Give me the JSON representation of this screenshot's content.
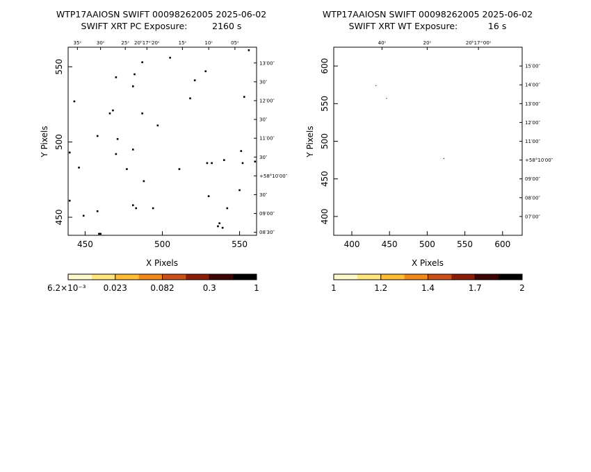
{
  "chart_data": [
    {
      "type": "scatter",
      "title": "WTP17AAIOSN SWIFT 00098262005 2025-06-02",
      "subtitle": "SWIFT XRT PC Exposure:         2160 s",
      "xlabel": "X Pixels",
      "ylabel": "Y Pixels",
      "xlim": [
        439,
        561
      ],
      "ylim": [
        438,
        563
      ],
      "xticks": [
        450,
        500,
        550
      ],
      "yticks": [
        450,
        500,
        550
      ],
      "ra_ticks": [
        {
          "x": 445,
          "label": "35ˢ"
        },
        {
          "x": 460,
          "label": "30ˢ"
        },
        {
          "x": 476,
          "label": "25ˢ"
        },
        {
          "x": 490,
          "label": "20ʰ17ᵐ20ˢ"
        },
        {
          "x": 513,
          "label": "15ˢ"
        },
        {
          "x": 530,
          "label": "10ˢ"
        },
        {
          "x": 547,
          "label": "05ˢ"
        }
      ],
      "dec_ticks": [
        {
          "y": 552.5,
          "label": "13′00″"
        },
        {
          "y": 540,
          "label": "30″"
        },
        {
          "y": 527.5,
          "label": "12′00″"
        },
        {
          "y": 515,
          "label": "30″"
        },
        {
          "y": 502.5,
          "label": "11′00″"
        },
        {
          "y": 490,
          "label": "30″"
        },
        {
          "y": 477.5,
          "label": "+58°10′00″"
        },
        {
          "y": 465,
          "label": "30″"
        },
        {
          "y": 452.5,
          "label": "09′00″"
        },
        {
          "y": 440,
          "label": "08′30″"
        }
      ],
      "points": [
        [
          470,
          543
        ],
        [
          482,
          545
        ],
        [
          481,
          537
        ],
        [
          487,
          553
        ],
        [
          505,
          556
        ],
        [
          528,
          547
        ],
        [
          521,
          541
        ],
        [
          518,
          529
        ],
        [
          443,
          527
        ],
        [
          468,
          521
        ],
        [
          466,
          519
        ],
        [
          487,
          519
        ],
        [
          497,
          511
        ],
        [
          553,
          530
        ],
        [
          458,
          504
        ],
        [
          471,
          502
        ],
        [
          470,
          492
        ],
        [
          481,
          495
        ],
        [
          440,
          493
        ],
        [
          446,
          483
        ],
        [
          477,
          482
        ],
        [
          511,
          482
        ],
        [
          529,
          486
        ],
        [
          532,
          486
        ],
        [
          540,
          488
        ],
        [
          552,
          486
        ],
        [
          551,
          494
        ],
        [
          560,
          487
        ],
        [
          488,
          474
        ],
        [
          550,
          468
        ],
        [
          530,
          464
        ],
        [
          440,
          461
        ],
        [
          481,
          458
        ],
        [
          483,
          456
        ],
        [
          494,
          456
        ],
        [
          458,
          454
        ],
        [
          449,
          451
        ],
        [
          542,
          456
        ],
        [
          537,
          446
        ],
        [
          536,
          444
        ],
        [
          539,
          443
        ],
        [
          459,
          439
        ],
        [
          460,
          439
        ],
        [
          556,
          561
        ]
      ],
      "colorbar": {
        "labels": [
          "6.2×10⁻³",
          "0.023",
          "0.082",
          "0.3",
          "1"
        ],
        "colors": [
          "#fffacd",
          "#ffe680",
          "#ffbe3a",
          "#f08a1e",
          "#c8501a",
          "#8a1e0a",
          "#3c0505",
          "#000000"
        ]
      }
    },
    {
      "type": "scatter",
      "title": "WTP17AAIOSN SWIFT 00098262005 2025-06-02",
      "subtitle": "SWIFT XRT WT Exposure:           16 s",
      "xlabel": "X Pixels",
      "ylabel": "Y Pixels",
      "xlim": [
        376,
        626
      ],
      "ylim": [
        375,
        625
      ],
      "xticks": [
        400,
        450,
        500,
        550,
        600
      ],
      "yticks": [
        400,
        450,
        500,
        550,
        600
      ],
      "ra_ticks": [
        {
          "x": 440,
          "label": "40ˢ"
        },
        {
          "x": 500,
          "label": "20ˢ"
        },
        {
          "x": 568,
          "label": "20ʰ17ᵐ00ˢ"
        }
      ],
      "dec_ticks": [
        {
          "y": 600,
          "label": "15′00″"
        },
        {
          "y": 575,
          "label": "14′00″"
        },
        {
          "y": 550,
          "label": "13′00″"
        },
        {
          "y": 525,
          "label": "12′00″"
        },
        {
          "y": 500,
          "label": "11′00″"
        },
        {
          "y": 475,
          "label": "+58°10′00″"
        },
        {
          "y": 450,
          "label": "09′00″"
        },
        {
          "y": 425,
          "label": "08′00″"
        },
        {
          "y": 400,
          "label": "07′00″"
        }
      ],
      "points": [
        [
          432,
          574
        ],
        [
          446,
          557
        ],
        [
          522,
          477
        ]
      ],
      "colorbar": {
        "labels": [
          "1",
          "1.2",
          "1.4",
          "1.7",
          "2"
        ],
        "colors": [
          "#fffacd",
          "#ffe680",
          "#ffbe3a",
          "#f08a1e",
          "#c8501a",
          "#8a1e0a",
          "#3c0505",
          "#000000"
        ]
      }
    }
  ]
}
